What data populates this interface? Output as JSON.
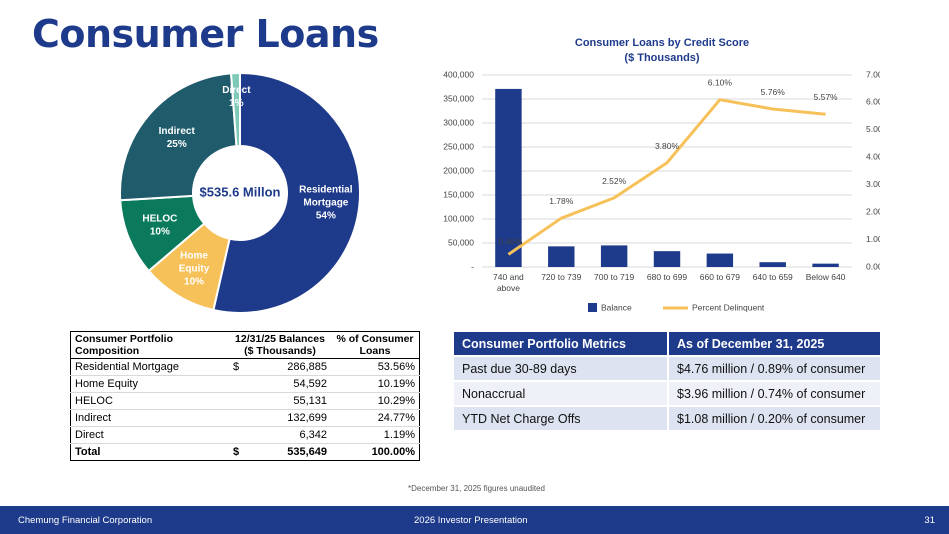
{
  "page": {
    "title": "Consumer Loans",
    "footnote": "*December 31, 2025 figures unaudited"
  },
  "footer": {
    "company": "Chemung Financial Corporation",
    "presentation": "2026 Investor Presentation",
    "page_number": "31"
  },
  "colors": {
    "navy": "#1e3a8a",
    "gold": "#f7c15a",
    "teal_dark": "#1f5b6b",
    "green": "#0b7a5c",
    "light_teal": "#7fc9b8",
    "bar": "#1e3a8a"
  },
  "chart_data": [
    {
      "type": "pie",
      "variant": "donut",
      "center_label": "$535.6 Millon",
      "slices": [
        {
          "label": "Residential Mortgage",
          "pct_label": "54%",
          "value": 53.56,
          "color": "#1e3a8a"
        },
        {
          "label": "Home Equity",
          "pct_label": "10%",
          "value": 10.19,
          "color": "#f7c15a"
        },
        {
          "label": "HELOC",
          "pct_label": "10%",
          "value": 10.29,
          "color": "#0b7a5c"
        },
        {
          "label": "Indirect",
          "pct_label": "25%",
          "value": 24.77,
          "color": "#1f5b6b"
        },
        {
          "label": "Direct",
          "pct_label": "1%",
          "value": 1.19,
          "color": "#7fc9b8"
        }
      ]
    },
    {
      "type": "bar",
      "title": "Consumer Loans by Credit Score",
      "subtitle": "($ Thousands)",
      "categories": [
        "740 and above",
        "720 to 739",
        "700 to 719",
        "680 to 699",
        "660 to 679",
        "640 to 659",
        "Below 640"
      ],
      "series": [
        {
          "name": "Balance",
          "kind": "bar",
          "axis": "left",
          "color": "#1e3a8a",
          "values": [
            371000,
            43000,
            45000,
            33000,
            28000,
            10000,
            7000
          ]
        },
        {
          "name": "Percent Delinquent",
          "kind": "line",
          "axis": "right",
          "color": "#f7c15a",
          "values": [
            0.46,
            1.78,
            2.52,
            3.8,
            6.1,
            5.76,
            5.57
          ],
          "labels": [
            "0.46%",
            "1.78%",
            "2.52%",
            "3.80%",
            "6.10%",
            "5.76%",
            "5.57%"
          ]
        }
      ],
      "ylim": [
        0,
        400000
      ],
      "y2lim": [
        0,
        7
      ],
      "yticks": [
        "-",
        "50,000",
        "100,000",
        "150,000",
        "200,000",
        "250,000",
        "300,000",
        "350,000",
        "400,000"
      ],
      "y2ticks": [
        "0.00%",
        "1.00%",
        "2.00%",
        "3.00%",
        "4.00%",
        "5.00%",
        "6.00%",
        "7.00%"
      ],
      "legend_position": "bottom"
    }
  ],
  "composition_table": {
    "headers": [
      "Consumer Portfolio Composition",
      "12/31/25 Balances ($ Thousands)",
      "% of Consumer Loans"
    ],
    "rows": [
      {
        "label": "Residential Mortgage",
        "dollar": "$",
        "balance": "286,885",
        "pct": "53.56%"
      },
      {
        "label": "Home Equity",
        "dollar": "",
        "balance": "54,592",
        "pct": "10.19%"
      },
      {
        "label": "HELOC",
        "dollar": "",
        "balance": "55,131",
        "pct": "10.29%"
      },
      {
        "label": "Indirect",
        "dollar": "",
        "balance": "132,699",
        "pct": "24.77%"
      },
      {
        "label": "Direct",
        "dollar": "",
        "balance": "6,342",
        "pct": "1.19%"
      }
    ],
    "total": {
      "label": "Total",
      "dollar": "$",
      "balance": "535,649",
      "pct": "100.00%"
    }
  },
  "metrics_table": {
    "headers": [
      "Consumer Portfolio Metrics",
      "As of December 31, 2025"
    ],
    "rows": [
      {
        "metric": "Past due 30-89 days",
        "value": "$4.76 million / 0.89% of consumer"
      },
      {
        "metric": "Nonaccrual",
        "value": "$3.96 million / 0.74% of consumer"
      },
      {
        "metric": "YTD Net Charge Offs",
        "value": "$1.08 million / 0.20% of consumer"
      }
    ]
  }
}
